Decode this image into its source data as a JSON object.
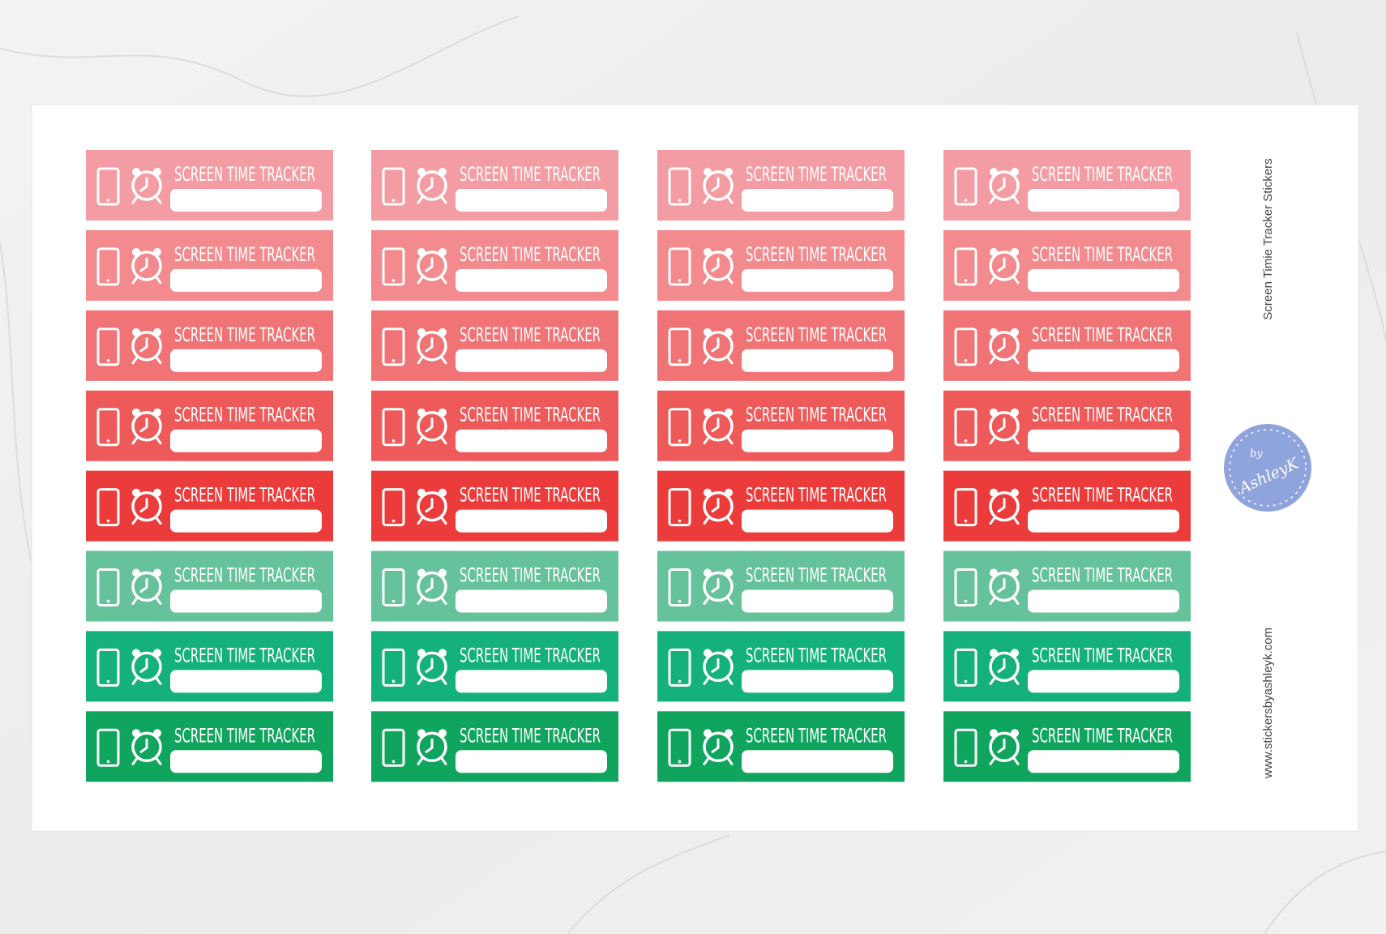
{
  "sticker_label": "SCREEN TIME TRACKER",
  "side_title": "Screen Timie  Tracker Stickers",
  "website": "www.stickersbyashleyk.com",
  "logo": {
    "by": "by",
    "name": "AshleyK"
  }
}
